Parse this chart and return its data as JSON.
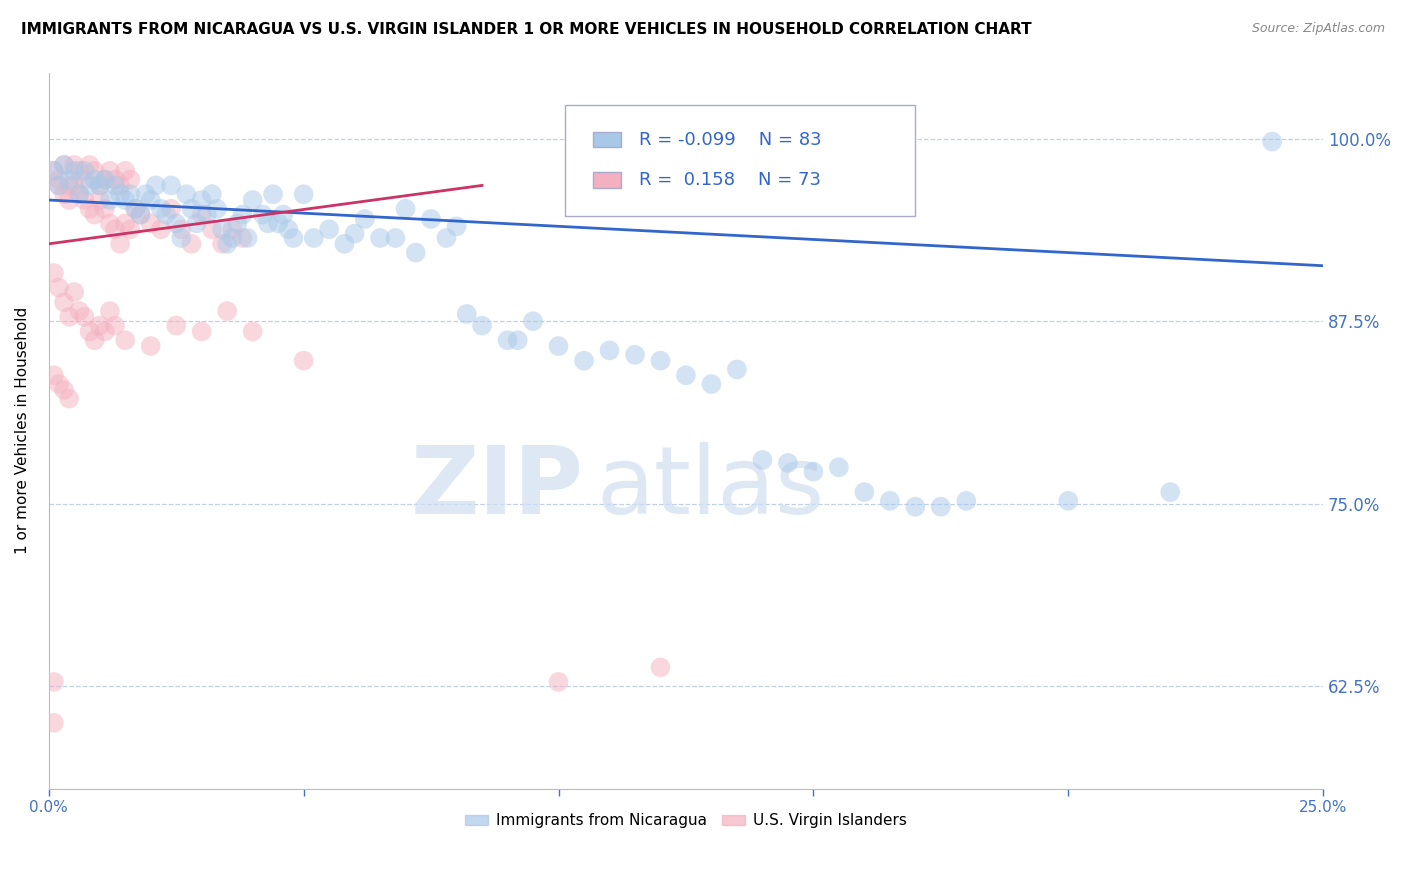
{
  "title": "IMMIGRANTS FROM NICARAGUA VS U.S. VIRGIN ISLANDER 1 OR MORE VEHICLES IN HOUSEHOLD CORRELATION CHART",
  "source": "Source: ZipAtlas.com",
  "ylabel": "1 or more Vehicles in Household",
  "yticks": [
    0.625,
    0.75,
    0.875,
    1.0
  ],
  "ytick_labels": [
    "62.5%",
    "75.0%",
    "87.5%",
    "100.0%"
  ],
  "xmin": 0.0,
  "xmax": 0.25,
  "ymin": 0.555,
  "ymax": 1.045,
  "watermark_zip": "ZIP",
  "watermark_atlas": "atlas",
  "blue_color": "#a8c8e8",
  "pink_color": "#f4b0c0",
  "blue_line_color": "#3366cc",
  "pink_line_color": "#cc3366",
  "axis_color": "#4472c4",
  "grid_color": "#c0d0e8",
  "blue_R": -0.099,
  "pink_R": 0.158,
  "blue_N": 83,
  "pink_N": 73,
  "blue_trend_x": [
    0.0,
    0.25
  ],
  "blue_trend_y": [
    0.958,
    0.913
  ],
  "pink_trend_x": [
    0.0,
    0.085
  ],
  "pink_trend_y": [
    0.928,
    0.968
  ],
  "blue_scatter": [
    [
      0.001,
      0.978
    ],
    [
      0.002,
      0.968
    ],
    [
      0.003,
      0.982
    ],
    [
      0.004,
      0.972
    ],
    [
      0.005,
      0.978
    ],
    [
      0.006,
      0.962
    ],
    [
      0.007,
      0.978
    ],
    [
      0.008,
      0.968
    ],
    [
      0.009,
      0.972
    ],
    [
      0.01,
      0.968
    ],
    [
      0.011,
      0.972
    ],
    [
      0.012,
      0.958
    ],
    [
      0.013,
      0.968
    ],
    [
      0.014,
      0.962
    ],
    [
      0.015,
      0.958
    ],
    [
      0.016,
      0.962
    ],
    [
      0.017,
      0.952
    ],
    [
      0.018,
      0.948
    ],
    [
      0.019,
      0.962
    ],
    [
      0.02,
      0.958
    ],
    [
      0.021,
      0.968
    ],
    [
      0.022,
      0.952
    ],
    [
      0.023,
      0.948
    ],
    [
      0.024,
      0.968
    ],
    [
      0.025,
      0.942
    ],
    [
      0.026,
      0.932
    ],
    [
      0.027,
      0.962
    ],
    [
      0.028,
      0.952
    ],
    [
      0.029,
      0.942
    ],
    [
      0.03,
      0.958
    ],
    [
      0.031,
      0.948
    ],
    [
      0.032,
      0.962
    ],
    [
      0.033,
      0.952
    ],
    [
      0.034,
      0.938
    ],
    [
      0.035,
      0.928
    ],
    [
      0.036,
      0.932
    ],
    [
      0.037,
      0.942
    ],
    [
      0.038,
      0.948
    ],
    [
      0.039,
      0.932
    ],
    [
      0.04,
      0.958
    ],
    [
      0.042,
      0.948
    ],
    [
      0.043,
      0.942
    ],
    [
      0.044,
      0.962
    ],
    [
      0.045,
      0.942
    ],
    [
      0.046,
      0.948
    ],
    [
      0.047,
      0.938
    ],
    [
      0.048,
      0.932
    ],
    [
      0.05,
      0.962
    ],
    [
      0.052,
      0.932
    ],
    [
      0.055,
      0.938
    ],
    [
      0.058,
      0.928
    ],
    [
      0.06,
      0.935
    ],
    [
      0.062,
      0.945
    ],
    [
      0.065,
      0.932
    ],
    [
      0.068,
      0.932
    ],
    [
      0.07,
      0.952
    ],
    [
      0.072,
      0.922
    ],
    [
      0.075,
      0.945
    ],
    [
      0.078,
      0.932
    ],
    [
      0.08,
      0.94
    ],
    [
      0.082,
      0.88
    ],
    [
      0.085,
      0.872
    ],
    [
      0.09,
      0.862
    ],
    [
      0.092,
      0.862
    ],
    [
      0.1,
      0.858
    ],
    [
      0.105,
      0.848
    ],
    [
      0.11,
      0.855
    ],
    [
      0.115,
      0.852
    ],
    [
      0.12,
      0.848
    ],
    [
      0.125,
      0.838
    ],
    [
      0.13,
      0.832
    ],
    [
      0.135,
      0.842
    ],
    [
      0.095,
      0.875
    ],
    [
      0.14,
      0.78
    ],
    [
      0.145,
      0.778
    ],
    [
      0.15,
      0.772
    ],
    [
      0.155,
      0.775
    ],
    [
      0.16,
      0.758
    ],
    [
      0.165,
      0.752
    ],
    [
      0.17,
      0.748
    ],
    [
      0.175,
      0.748
    ],
    [
      0.18,
      0.752
    ],
    [
      0.2,
      0.752
    ],
    [
      0.22,
      0.758
    ],
    [
      0.24,
      0.998
    ]
  ],
  "pink_scatter": [
    [
      0.001,
      0.978
    ],
    [
      0.002,
      0.972
    ],
    [
      0.003,
      0.982
    ],
    [
      0.004,
      0.968
    ],
    [
      0.005,
      0.982
    ],
    [
      0.006,
      0.978
    ],
    [
      0.007,
      0.972
    ],
    [
      0.008,
      0.982
    ],
    [
      0.009,
      0.978
    ],
    [
      0.01,
      0.968
    ],
    [
      0.011,
      0.972
    ],
    [
      0.012,
      0.978
    ],
    [
      0.013,
      0.972
    ],
    [
      0.014,
      0.968
    ],
    [
      0.015,
      0.978
    ],
    [
      0.016,
      0.972
    ],
    [
      0.002,
      0.968
    ],
    [
      0.003,
      0.962
    ],
    [
      0.004,
      0.958
    ],
    [
      0.005,
      0.968
    ],
    [
      0.006,
      0.962
    ],
    [
      0.007,
      0.958
    ],
    [
      0.008,
      0.952
    ],
    [
      0.009,
      0.948
    ],
    [
      0.01,
      0.958
    ],
    [
      0.011,
      0.952
    ],
    [
      0.012,
      0.942
    ],
    [
      0.013,
      0.938
    ],
    [
      0.014,
      0.928
    ],
    [
      0.015,
      0.942
    ],
    [
      0.016,
      0.938
    ],
    [
      0.017,
      0.952
    ],
    [
      0.018,
      0.948
    ],
    [
      0.02,
      0.942
    ],
    [
      0.022,
      0.938
    ],
    [
      0.024,
      0.952
    ],
    [
      0.026,
      0.938
    ],
    [
      0.028,
      0.928
    ],
    [
      0.03,
      0.948
    ],
    [
      0.032,
      0.938
    ],
    [
      0.034,
      0.928
    ],
    [
      0.036,
      0.938
    ],
    [
      0.038,
      0.932
    ],
    [
      0.001,
      0.908
    ],
    [
      0.002,
      0.898
    ],
    [
      0.003,
      0.888
    ],
    [
      0.004,
      0.878
    ],
    [
      0.005,
      0.895
    ],
    [
      0.006,
      0.882
    ],
    [
      0.007,
      0.878
    ],
    [
      0.008,
      0.868
    ],
    [
      0.009,
      0.862
    ],
    [
      0.01,
      0.872
    ],
    [
      0.011,
      0.868
    ],
    [
      0.012,
      0.882
    ],
    [
      0.013,
      0.872
    ],
    [
      0.015,
      0.862
    ],
    [
      0.02,
      0.858
    ],
    [
      0.025,
      0.872
    ],
    [
      0.03,
      0.868
    ],
    [
      0.035,
      0.882
    ],
    [
      0.04,
      0.868
    ],
    [
      0.05,
      0.848
    ],
    [
      0.001,
      0.838
    ],
    [
      0.002,
      0.832
    ],
    [
      0.003,
      0.828
    ],
    [
      0.004,
      0.822
    ],
    [
      0.001,
      0.628
    ],
    [
      0.001,
      0.6
    ],
    [
      0.1,
      0.628
    ],
    [
      0.12,
      0.638
    ]
  ]
}
